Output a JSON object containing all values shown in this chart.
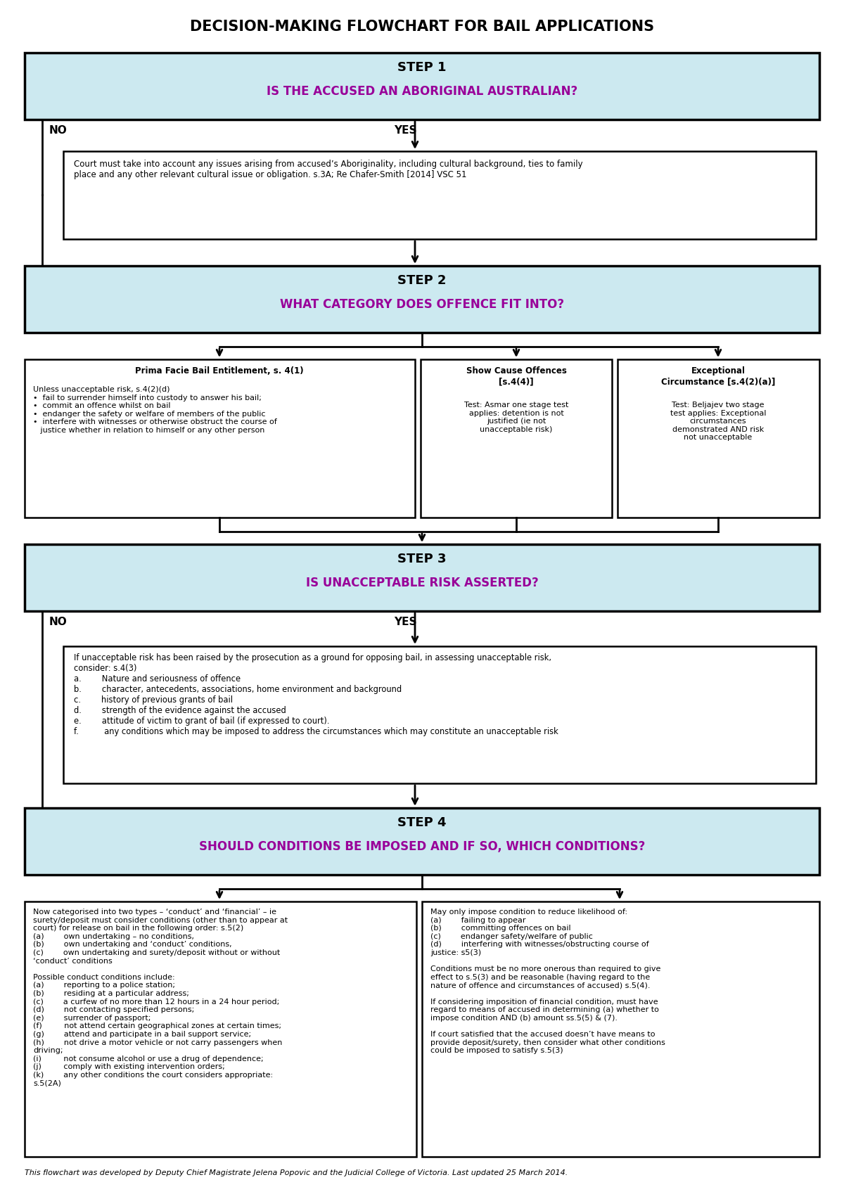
{
  "title": "DECISION-MAKING FLOWCHART FOR BAIL APPLICATIONS",
  "footer": "This flowchart was developed by Deputy Chief Magistrate Jelena Popovic and the Judicial College of Victoria. Last updated 25 March 2014.",
  "step1_line1": "STEP 1",
  "step1_line2": "IS THE ACCUSED AN ABORIGINAL AUSTRALIAN?",
  "step1_yes_text": "Court must take into account any issues arising from accused’s Aboriginality, including cultural background, ties to family\nplace and any other relevant cultural issue or obligation. s.3A; Re Chafer-Smith [2014] VSC 51",
  "step2_line1": "STEP 2",
  "step2_line2": "WHAT CATEGORY DOES OFFENCE FIT INTO?",
  "box1_head": "Prima Facie Bail Entitlement, s. 4(1)",
  "box1_body": "Unless unacceptable risk, s.4(2)(d)\n•  fail to surrender himself into custody to answer his bail;\n•  commit an offence whilst on bail\n•  endanger the safety or welfare of members of the public\n•  interfere with witnesses or otherwise obstruct the course of\n   justice whether in relation to himself or any other person",
  "box2_head": "Show Cause Offences\n[s.4(4)]",
  "box2_body": "Test: Asmar one stage test\napplies: detention is not\njustified (ie not\nunacceptable risk)",
  "box3_head": "Exceptional\nCircumstance [s.4(2)(a)]",
  "box3_body": "Test: Beljajev two stage\ntest applies: Exceptional\ncircumstances\ndemonstrated AND risk\nnot unacceptable",
  "step3_line1": "STEP 3",
  "step3_line2": "IS UNACCEPTABLE RISK ASSERTED?",
  "step3_yes_text": "If unacceptable risk has been raised by the prosecution as a ground for opposing bail, in assessing unacceptable risk,\nconsider: s.4(3)\na.        Nature and seriousness of offence\nb.        character, antecedents, associations, home environment and background\nc.        history of previous grants of bail\nd.        strength of the evidence against the accused\ne.        attitude of victim to grant of bail (if expressed to court).\nf.          any conditions which may be imposed to address the circumstances which may constitute an unacceptable risk",
  "step4_line1": "STEP 4",
  "step4_line2": "SHOULD CONDITIONS BE IMPOSED AND IF SO, WHICH CONDITIONS?",
  "step4_left": "Now categorised into two types – ‘conduct’ and ‘financial’ – ie\nsurety/deposit must consider conditions (other than to appear at\ncourt) for release on bail in the following order: s.5(2)\n(a)        own undertaking – no conditions,\n(b)        own undertaking and ‘conduct’ conditions,\n(c)        own undertaking and surety/deposit without or without\n‘conduct’ conditions\n\nPossible conduct conditions include:\n(a)        reporting to a police station;\n(b)        residing at a particular address;\n(c)        a curfew of no more than 12 hours in a 24 hour period;\n(d)        not contacting specified persons;\n(e)        surrender of passport;\n(f)         not attend certain geographical zones at certain times;\n(g)        attend and participate in a bail support service;\n(h)        not drive a motor vehicle or not carry passengers when\ndriving;\n(i)         not consume alcohol or use a drug of dependence;\n(j)         comply with existing intervention orders;\n(k)        any other conditions the court considers appropriate:\ns.5(2A)",
  "step4_right": "May only impose condition to reduce likelihood of:\n(a)        failing to appear\n(b)        committing offences on bail\n(c)        endanger safety/welfare of public\n(d)        interfering with witnesses/obstructing course of\njustice: s5(3)\n\nConditions must be no more onerous than required to give\neffect to s.5(3) and be reasonable (having regard to the\nnature of offence and circumstances of accused) s.5(4).\n\nIf considering imposition of financial condition, must have\nregard to means of accused in determining (a) whether to\nimpose condition AND (b) amount ss.5(5) & (7).\n\nIf court satisfied that the accused doesn’t have means to\nprovide deposit/surety, then consider what other conditions\ncould be imposed to satisfy s.5(3)",
  "purple": "#990099",
  "black": "#000000",
  "white": "#ffffff",
  "light_blue": "#cce9f0"
}
